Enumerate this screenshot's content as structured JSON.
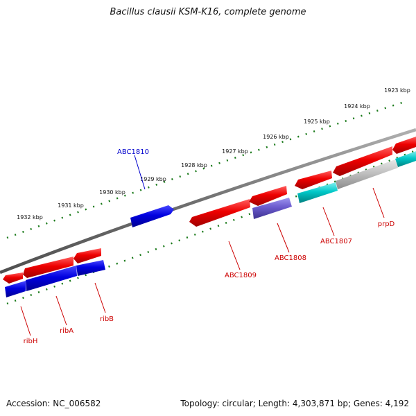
{
  "title": "Bacillus clausii KSM-K16, complete genome",
  "footer": {
    "accession": "Accession: NC_006582",
    "summary": "Topology: circular; Length: 4,303,871 bp; Genes: 4,192"
  },
  "colors": {
    "forward_gene": "#e00000",
    "reverse_gene": "#0000d0",
    "cyan_gene": "#00c0c0",
    "gray_gene": "#b8b8b8",
    "purple_gene": "#6a5acd",
    "tick_mark": "#1a7a1a",
    "backbone": "#808080",
    "label_red": "#cc0000",
    "label_blue": "#0000cc"
  },
  "kbp_labels": [
    "1923 kbp",
    "1924 kbp",
    "1925 kbp",
    "1926 kbp",
    "1927 kbp",
    "1928 kbp",
    "1929 kbp",
    "1930 kbp",
    "1931 kbp",
    "1932 kbp"
  ],
  "gene_labels": [
    "ABC1810",
    "ABC1809",
    "ABC1808",
    "ABC1807",
    "prpD",
    "ribH",
    "ribA",
    "ribB"
  ]
}
